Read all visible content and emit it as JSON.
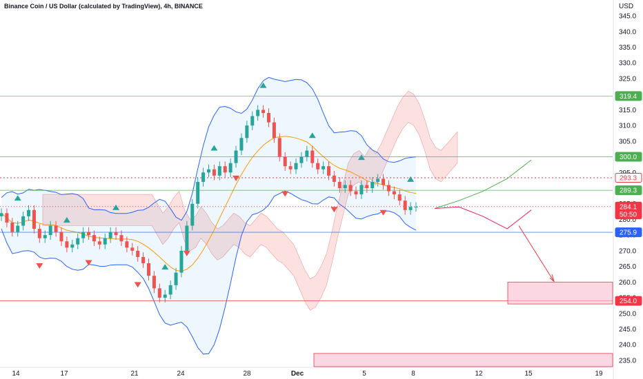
{
  "header": {
    "title": "Binance Coin / US Dollar (calculated by TradingView), 4h, BINANCE",
    "currency": "USD"
  },
  "colors": {
    "up": "#26a69a",
    "down": "#ef5350",
    "bb": "#2962ff",
    "ema": "#ff9800",
    "cloud_bear": "#f8c9c7",
    "cloud_bull": "#cfe7d0",
    "green_level": "#4caf50",
    "red_level": "#f23645",
    "blue_level": "#2962ff"
  },
  "chart_data": {
    "type": "candlestick",
    "ylim": [
      233,
      347
    ],
    "y_ticks": [
      "345.0",
      "340.0",
      "335.0",
      "330.0",
      "325.0",
      "320.0",
      "315.0",
      "310.0",
      "305.0",
      "300.0",
      "295.0",
      "290.0",
      "285.0",
      "280.0",
      "275.0",
      "270.0",
      "265.0",
      "260.0",
      "255.0",
      "250.0",
      "245.0",
      "240.0",
      "235.0"
    ],
    "x_ticks": [
      "14",
      "17",
      "21",
      "24",
      "28",
      "Dec",
      "5",
      "8",
      "12",
      "15",
      "19"
    ],
    "price_labels": [
      {
        "text": "319.4",
        "value": 319.4,
        "color": "#4caf50"
      },
      {
        "text": "300.0",
        "value": 300.0,
        "color": "#4caf50"
      },
      {
        "text": "293.3",
        "value": 293.3,
        "color": "#f23645",
        "outline": true
      },
      {
        "text": "289.3",
        "value": 289.3,
        "color": "#4caf50"
      },
      {
        "text": "284.1",
        "value": 284.1,
        "color": "#f23645"
      },
      {
        "text": "50:50",
        "value": 281.6,
        "color": "#f23645"
      },
      {
        "text": "275.9",
        "value": 275.9,
        "color": "#2962ff"
      },
      {
        "text": "254.0",
        "value": 254.0,
        "color": "#f23645"
      }
    ],
    "levels": [
      {
        "value": 319.4,
        "color": "#4caf50"
      },
      {
        "value": 300.0,
        "color": "#4caf50"
      },
      {
        "value": 289.3,
        "color": "#4caf50"
      },
      {
        "value": 275.9,
        "color": "#2962ff"
      },
      {
        "value": 254.0,
        "color": "#f23645"
      }
    ],
    "close_series": [
      282,
      279,
      276,
      278,
      281,
      283,
      277,
      274,
      275,
      278,
      276,
      273,
      271,
      272,
      274,
      276,
      275,
      273,
      272,
      274,
      276,
      275,
      273,
      271,
      270,
      268,
      266,
      262,
      258,
      255,
      256,
      259,
      263,
      270,
      278,
      285,
      292,
      295,
      296,
      294,
      297,
      295,
      298,
      302,
      306,
      310,
      313,
      315,
      314,
      311,
      306,
      300,
      297,
      296,
      298,
      300,
      302,
      298,
      296,
      297,
      294,
      292,
      290,
      291,
      289,
      288,
      291,
      290,
      292,
      293,
      291,
      289,
      288,
      286,
      283,
      284,
      284
    ],
    "projection_bull": [
      [
        284.5,
        286
      ],
      [
        285,
        289
      ],
      [
        289,
        293
      ],
      [
        293,
        299
      ]
    ],
    "projection_bear": [
      [
        285,
        284
      ],
      [
        286,
        281
      ],
      [
        281,
        277
      ],
      [
        280,
        283
      ]
    ],
    "target_zone": {
      "top": 260,
      "bottom": 253
    },
    "lower_zone": {
      "top": 237.2,
      "bottom": 233
    }
  }
}
